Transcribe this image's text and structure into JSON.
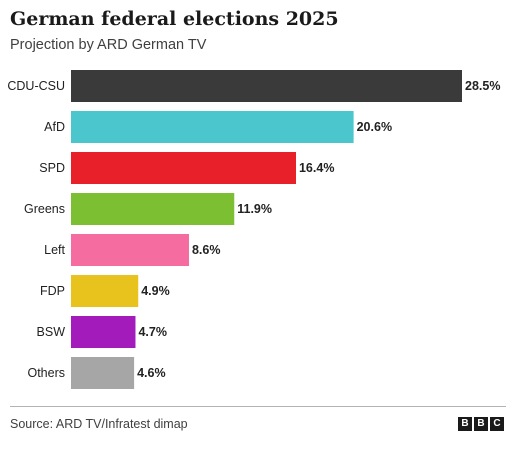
{
  "chart_data": {
    "type": "bar",
    "orientation": "horizontal",
    "title": "German federal elections 2025",
    "subtitle": "Projection by ARD German TV",
    "categories": [
      "CDU-CSU",
      "AfD",
      "SPD",
      "Greens",
      "Left",
      "FDP",
      "BSW",
      "Others"
    ],
    "values": [
      28.5,
      20.6,
      16.4,
      11.9,
      8.6,
      4.9,
      4.7,
      4.6
    ],
    "value_labels": [
      "28.5%",
      "20.6%",
      "16.4%",
      "11.9%",
      "8.6%",
      "4.9%",
      "4.7%",
      "4.6%"
    ],
    "colors": [
      "#3a3a3a",
      "#4bc6cc",
      "#e8202a",
      "#7cbf33",
      "#f56ca0",
      "#e8c21d",
      "#a31bbb",
      "#a6a6a6"
    ],
    "xlim": [
      0,
      28.5
    ],
    "grid": false,
    "legend": "none"
  },
  "footer": {
    "source": "Source: ARD TV/Infratest dimap",
    "logo_letters": [
      "B",
      "B",
      "C"
    ]
  }
}
